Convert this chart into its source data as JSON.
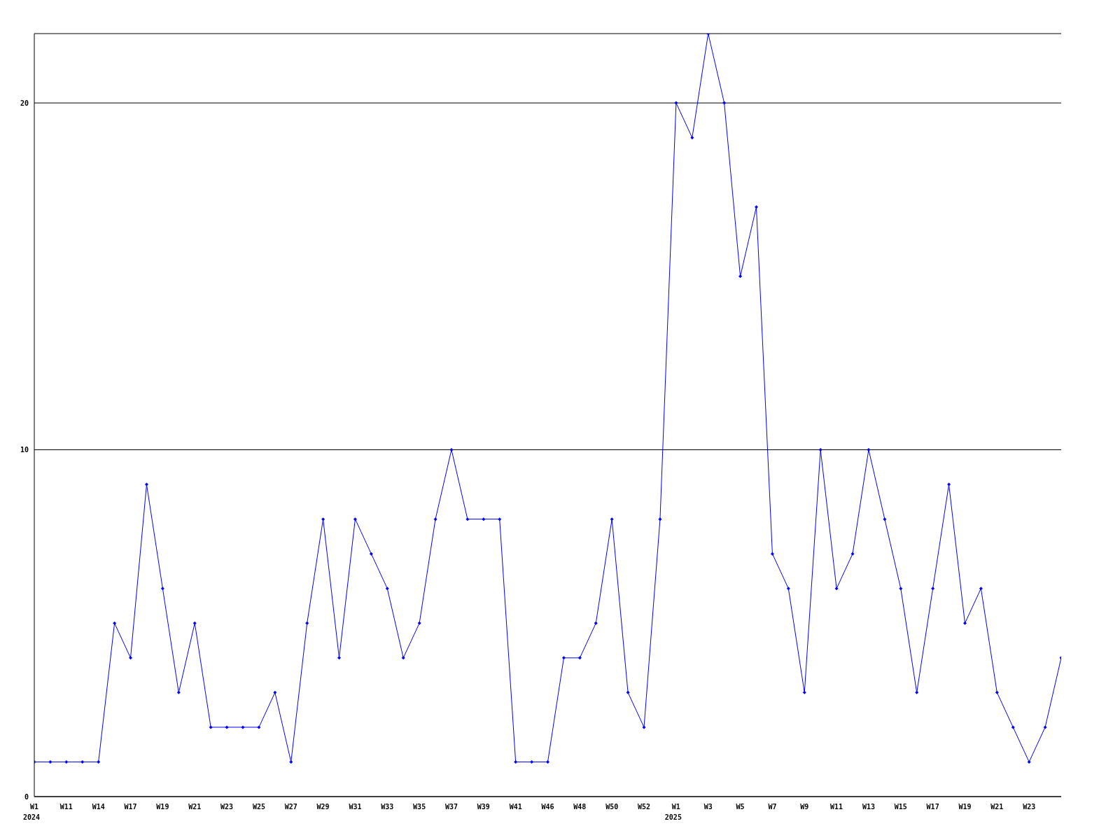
{
  "chart_data": {
    "type": "line",
    "categories": [
      "W1\n2024",
      null,
      "W11",
      null,
      "W14",
      null,
      "W17",
      null,
      "W19",
      null,
      "W21",
      null,
      "W23",
      null,
      "W25",
      null,
      "W27",
      null,
      "W29",
      null,
      "W31",
      null,
      "W33",
      null,
      "W35",
      null,
      "W37",
      null,
      "W39",
      null,
      "W41",
      null,
      "W46",
      null,
      "W48",
      null,
      "W50",
      null,
      "W52",
      null,
      "W1\n2025",
      null,
      "W3",
      null,
      "W5",
      null,
      "W7",
      null,
      "W9",
      null,
      "W11",
      null,
      "W13",
      null,
      "W15",
      null,
      "W17",
      null,
      "W19",
      null,
      "W21",
      null,
      "W23",
      null,
      null
    ],
    "series": [
      {
        "color": "#0000ff",
        "values": [
          1,
          1,
          1,
          1,
          1,
          5,
          4,
          9,
          6,
          3,
          5,
          2,
          2,
          2,
          2,
          3,
          1,
          5,
          8,
          4,
          8,
          7,
          6,
          4,
          5,
          8,
          10,
          8,
          8,
          8,
          1,
          1,
          1,
          4,
          4,
          5,
          8,
          3,
          2,
          8,
          20,
          19,
          22,
          20,
          15,
          17,
          7,
          6,
          3,
          10,
          6,
          7,
          10,
          8,
          6,
          3,
          6,
          9,
          5,
          6,
          3,
          2,
          1,
          2,
          4
        ]
      }
    ],
    "ylim": [
      0,
      22
    ],
    "yticks": [
      0,
      10,
      20
    ],
    "grid": "y",
    "marker": "diamond",
    "line_style": "solid"
  }
}
